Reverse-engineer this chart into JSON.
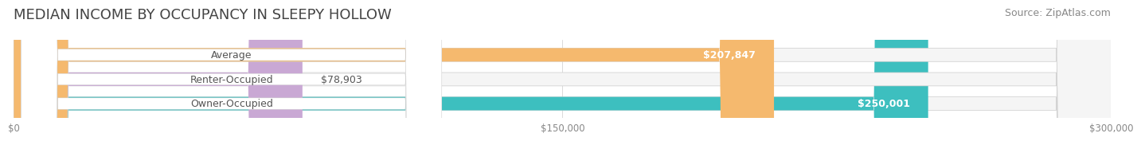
{
  "title": "MEDIAN INCOME BY OCCUPANCY IN SLEEPY HOLLOW",
  "source": "Source: ZipAtlas.com",
  "categories": [
    "Owner-Occupied",
    "Renter-Occupied",
    "Average"
  ],
  "values": [
    250001,
    78903,
    207847
  ],
  "bar_colors": [
    "#3dbfbf",
    "#c9a8d4",
    "#f5b96e"
  ],
  "bar_bg_color": "#f0f0f0",
  "label_texts": [
    "$250,001",
    "$78,903",
    "$207,847"
  ],
  "xlim": [
    0,
    300000
  ],
  "xtick_values": [
    0,
    150000,
    300000
  ],
  "xtick_labels": [
    "$0",
    "$150,000",
    "$300,000"
  ],
  "title_fontsize": 13,
  "source_fontsize": 9,
  "bar_label_fontsize": 9,
  "category_fontsize": 9,
  "bar_height": 0.55,
  "background_color": "#ffffff"
}
